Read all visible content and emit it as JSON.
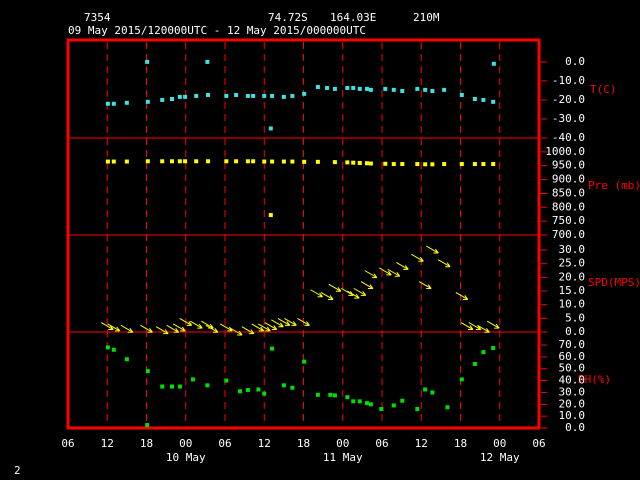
{
  "header": {
    "station": "7354",
    "lat": "74.72S",
    "lon": "164.03E",
    "elev": "210M",
    "period": "09 May 2015/120000UTC - 12 May 2015/000000UTC"
  },
  "page_number": "2",
  "x_axis": {
    "xlim": [
      6,
      78
    ],
    "xticks": [
      {
        "value": 6,
        "label": "06"
      },
      {
        "value": 12,
        "label": "12"
      },
      {
        "value": 18,
        "label": "18"
      },
      {
        "value": 24,
        "label": "00"
      },
      {
        "value": 30,
        "label": "06"
      },
      {
        "value": 36,
        "label": "12"
      },
      {
        "value": 42,
        "label": "18"
      },
      {
        "value": 48,
        "label": "00"
      },
      {
        "value": 54,
        "label": "06"
      },
      {
        "value": 60,
        "label": "12"
      },
      {
        "value": 66,
        "label": "18"
      },
      {
        "value": 72,
        "label": "00"
      },
      {
        "value": 78,
        "label": "06"
      }
    ],
    "day_labels": [
      {
        "value": 24,
        "label": "10 May"
      },
      {
        "value": 48,
        "label": "11 May"
      },
      {
        "value": 72,
        "label": "12 May"
      }
    ]
  },
  "chart_data": [
    {
      "type": "scatter",
      "label": "T(C)",
      "color": "#40e0e0",
      "ylim": [
        -40,
        11.5
      ],
      "yticks": [
        {
          "value": 0,
          "label": "0.0"
        },
        {
          "value": -10,
          "label": "-10.0"
        },
        {
          "value": -20,
          "label": "-20.0"
        },
        {
          "value": -30,
          "label": "-30.0"
        },
        {
          "value": -40,
          "label": "-40.0"
        }
      ],
      "x": [
        12.1,
        13.0,
        15.0,
        18.1,
        18.2,
        20.4,
        21.9,
        23.1,
        23.9,
        25.6,
        27.3,
        27.4,
        30.2,
        31.7,
        33.5,
        34.3,
        36.0,
        37.0,
        37.2,
        39.0,
        40.3,
        42.1,
        44.2,
        45.6,
        46.8,
        48.7,
        49.6,
        50.6,
        51.7,
        52.3,
        54.5,
        55.8,
        57.1,
        59.4,
        60.6,
        61.7,
        63.5,
        66.2,
        68.2,
        69.5,
        71.0,
        71.1
      ],
      "values": [
        -22,
        -22,
        -21.5,
        0,
        -21,
        -20,
        -19.5,
        -18.4,
        -18.4,
        -17.9,
        0,
        -17.4,
        -17.9,
        -17.4,
        -17.9,
        -17.9,
        -17.9,
        -35,
        -17.9,
        -18.4,
        -17.9,
        -16.8,
        -13.2,
        -13.7,
        -14.2,
        -13.7,
        -13.7,
        -14.2,
        -14.2,
        -14.7,
        -14.2,
        -14.7,
        -15.3,
        -14.2,
        -14.7,
        -15.3,
        -14.7,
        -17.4,
        -19.5,
        -20,
        -21,
        -1
      ]
    },
    {
      "type": "scatter",
      "label": "Pre (mb)",
      "color": "#ffff00",
      "ylim": [
        700,
        1050
      ],
      "yticks": [
        {
          "value": 1000,
          "label": "1000.0"
        },
        {
          "value": 950,
          "label": "950.0"
        },
        {
          "value": 900,
          "label": "900.0"
        },
        {
          "value": 850,
          "label": "850.0"
        },
        {
          "value": 800,
          "label": "800.0"
        },
        {
          "value": 750,
          "label": "750.0"
        },
        {
          "value": 700,
          "label": "700.0"
        }
      ],
      "x": [
        12.1,
        13.0,
        15.0,
        18.2,
        20.4,
        21.9,
        23.1,
        23.9,
        25.6,
        27.4,
        30.2,
        31.7,
        33.5,
        34.3,
        36.0,
        37.0,
        37.2,
        39.0,
        40.3,
        42.1,
        44.2,
        46.8,
        48.7,
        49.6,
        50.6,
        51.7,
        52.3,
        54.5,
        55.8,
        57.1,
        59.4,
        60.6,
        61.7,
        63.5,
        66.2,
        68.2,
        69.5,
        71.0
      ],
      "values": [
        965,
        965,
        965,
        966,
        966,
        966,
        966,
        966,
        966,
        966,
        966,
        966,
        966,
        966,
        965,
        772,
        965,
        965,
        965,
        964,
        964,
        963,
        962,
        961,
        960,
        959,
        958,
        957,
        956,
        956,
        956,
        955,
        955,
        956,
        956,
        956,
        956,
        956
      ]
    },
    {
      "type": "arrow",
      "label": "SPD(MPS)",
      "color": "#ffff00",
      "ylim": [
        0,
        35.5
      ],
      "yticks": [
        {
          "value": 30,
          "label": "30.0"
        },
        {
          "value": 25,
          "label": "25.0"
        },
        {
          "value": 20,
          "label": "20.0"
        },
        {
          "value": 15,
          "label": "15.0"
        },
        {
          "value": 10,
          "label": "10.0"
        },
        {
          "value": 5,
          "label": "5.0"
        },
        {
          "value": 0,
          "label": "0.0"
        }
      ],
      "x": [
        12,
        13,
        15,
        18,
        20.4,
        22,
        23,
        24,
        25.6,
        27.3,
        28,
        30.2,
        31.7,
        33.5,
        35,
        36,
        37,
        38,
        39,
        40,
        42,
        44,
        45.6,
        46.8,
        48.7,
        49.6,
        50.6,
        51.7,
        52.3,
        54.5,
        55.8,
        57.1,
        59.4,
        60.6,
        61.7,
        63.5,
        66.2,
        67,
        68.2,
        69.5,
        71
      ],
      "values": [
        2,
        1.5,
        1,
        1,
        0.5,
        1,
        1.5,
        3.5,
        2.5,
        2.5,
        1,
        1.5,
        0,
        0.5,
        1.5,
        1.5,
        2,
        3,
        3.5,
        3.5,
        3.5,
        14,
        13,
        16,
        14.5,
        13.5,
        14.5,
        17,
        21,
        22,
        21.5,
        24,
        27,
        17,
        30,
        25,
        13,
        2,
        2,
        1,
        2.5
      ]
    },
    {
      "type": "scatter",
      "label": "RH(%)",
      "color": "#00e000",
      "ylim": [
        0,
        81
      ],
      "yticks": [
        {
          "value": 70,
          "label": "70.0"
        },
        {
          "value": 60,
          "label": "60.0"
        },
        {
          "value": 50,
          "label": "50.0"
        },
        {
          "value": 40,
          "label": "40.0"
        },
        {
          "value": 30,
          "label": "30.0"
        },
        {
          "value": 20,
          "label": "20.0"
        },
        {
          "value": 10,
          "label": "10.0"
        },
        {
          "value": 0,
          "label": "0.0"
        }
      ],
      "x": [
        12.1,
        13.0,
        15.0,
        18.1,
        18.2,
        20.4,
        21.9,
        23.1,
        25.1,
        27.3,
        30.2,
        32.3,
        33.5,
        35.1,
        36.0,
        37.2,
        39.0,
        40.3,
        42.1,
        44.2,
        46.1,
        46.8,
        48.7,
        49.6,
        50.6,
        51.7,
        52.3,
        53.9,
        55.8,
        57.1,
        59.4,
        60.6,
        61.7,
        64.0,
        66.2,
        68.2,
        69.5,
        71.0
      ],
      "values": [
        68,
        66,
        58,
        2.5,
        48,
        35,
        35,
        35,
        41,
        36,
        40,
        31,
        32,
        32.5,
        29,
        67,
        36,
        34,
        56,
        28,
        28,
        27.5,
        26,
        22.5,
        22.5,
        21,
        20,
        16,
        19,
        23,
        16,
        32.5,
        30,
        17.5,
        41,
        54,
        64,
        67.5
      ]
    }
  ]
}
